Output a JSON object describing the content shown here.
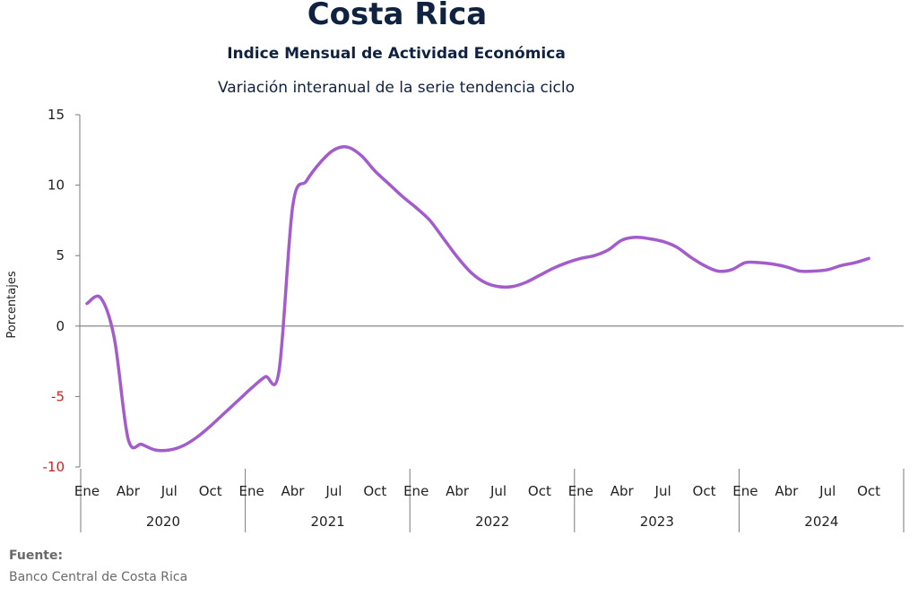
{
  "header": {
    "title": "Costa Rica",
    "subtitle": "Indice Mensual de  Actividad Económica",
    "subtitle2": "Variación interanual de la serie tendencia ciclo"
  },
  "source": {
    "label": "Fuente:",
    "text": "Banco Central de Costa Rica"
  },
  "colors": {
    "line": "#a35ccc",
    "negative_tick": "#cc2222",
    "positive_tick": "#222222",
    "axis": "#7a7a7a"
  },
  "chart_data": {
    "type": "line",
    "title": "Variación interanual de la serie tendencia ciclo",
    "ylabel": "Porcentajes",
    "xlabel": "",
    "ylim": [
      -10,
      15
    ],
    "yticks": [
      15,
      10,
      5,
      0,
      -5,
      -10
    ],
    "grid": false,
    "month_tick_labels": [
      "Ene",
      "Abr",
      "Jul",
      "Oct"
    ],
    "years": [
      "2020",
      "2021",
      "2022",
      "2023",
      "2024"
    ],
    "series": [
      {
        "values": [
          1.6,
          2.0,
          -0.9,
          -8.0,
          -8.4,
          -8.8,
          -8.8,
          -8.5,
          -7.9,
          -7.1,
          -6.2,
          -5.3,
          -4.4,
          -3.6,
          -3.2,
          8.5,
          10.3,
          11.6,
          12.5,
          12.7,
          12.1,
          11.0,
          10.1,
          9.2,
          8.4,
          7.5,
          6.2,
          4.9,
          3.8,
          3.1,
          2.8,
          2.8,
          3.1,
          3.6,
          4.1,
          4.5,
          4.8,
          5.0,
          5.4,
          6.1,
          6.3,
          6.2,
          6.0,
          5.6,
          4.9,
          4.3,
          3.9,
          4.0,
          4.5,
          4.5,
          4.4,
          4.2,
          3.9,
          3.9,
          4.0,
          4.3,
          4.5,
          4.8
        ]
      }
    ]
  }
}
